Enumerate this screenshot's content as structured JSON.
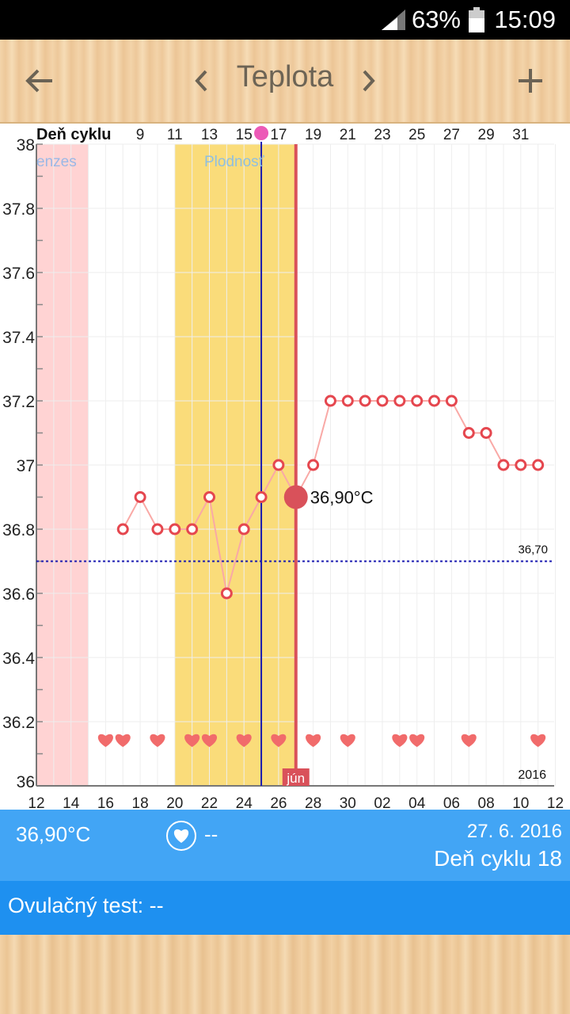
{
  "status": {
    "battery_pct": "63%",
    "time": "15:09",
    "icons": [
      "signal-icon",
      "battery-icon"
    ]
  },
  "toolbar": {
    "title": "Teplota",
    "back_icon": "arrow-left-icon",
    "prev_icon": "chevron-left-icon",
    "next_icon": "chevron-right-icon",
    "add_icon": "plus-icon"
  },
  "chart": {
    "top_axis_label": "Deň cyklu",
    "menses_label": "enzes",
    "fertile_label": "Plodnosť",
    "coverline_label": "36,70",
    "year_label": "2016",
    "month_label": "jún",
    "selected_value_label": "36,90°C",
    "colors": {
      "menses": "#ffd3d3",
      "fertile": "#fadc7a",
      "line": "#f9a9a6",
      "point": "#e5474f",
      "selected": "#d9515a",
      "coverline": "#1a1ab0"
    }
  },
  "chart_data": {
    "type": "line",
    "top_tick_labels": [
      "9",
      "11",
      "13",
      "15",
      "17",
      "19",
      "21",
      "23",
      "25",
      "27",
      "29",
      "31"
    ],
    "x_tick_labels": [
      "12",
      "14",
      "16",
      "18",
      "20",
      "22",
      "24",
      "26",
      "28",
      "30",
      "02",
      "04",
      "06",
      "08",
      "10",
      "12"
    ],
    "y_tick_labels": [
      "38",
      "37.8",
      "37.6",
      "37.4",
      "37.2",
      "37",
      "36.8",
      "36.6",
      "36.4",
      "36.2",
      "36"
    ],
    "ylim": [
      36,
      38
    ],
    "x": [
      "17",
      "18",
      "19",
      "20",
      "21",
      "22",
      "23",
      "24",
      "25",
      "26",
      "27",
      "28",
      "29",
      "30",
      "01",
      "02",
      "03",
      "04",
      "05",
      "06",
      "07",
      "08",
      "09",
      "10",
      "11"
    ],
    "values": [
      36.8,
      36.9,
      36.8,
      36.8,
      36.8,
      36.9,
      36.6,
      36.8,
      36.9,
      37.0,
      36.9,
      37.0,
      37.2,
      37.2,
      37.2,
      37.2,
      37.2,
      37.2,
      37.2,
      37.2,
      37.1,
      37.1,
      37.0,
      37.0,
      37.0
    ],
    "selected_date": "27",
    "coverline": 36.7,
    "intercourse_days": [
      "16",
      "17",
      "19",
      "21",
      "22",
      "24",
      "26",
      "28",
      "30",
      "03",
      "04",
      "07",
      "11"
    ],
    "menses_days": [
      "12",
      "13",
      "14"
    ],
    "fertile_days": [
      "20",
      "21",
      "22",
      "23",
      "24",
      "25",
      "26"
    ]
  },
  "info": {
    "temperature": "36,90°C",
    "intercourse": "--",
    "heart_icon": "heart-icon",
    "date": "27. 6. 2016",
    "cycle_day": "Deň cyklu 18"
  },
  "ovulation": {
    "label": "Ovulačný test: --"
  }
}
